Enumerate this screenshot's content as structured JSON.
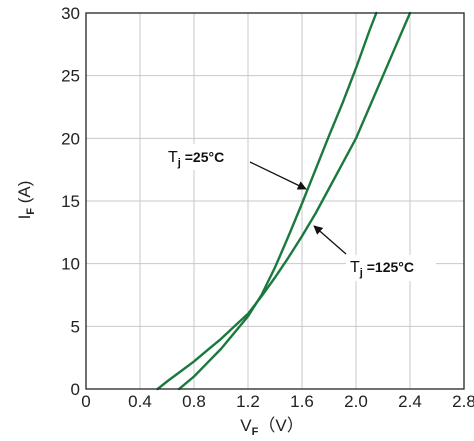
{
  "chart_data": {
    "type": "line",
    "title": "",
    "xlabel": {
      "main": "V",
      "sub": "F",
      "unit": "（V）"
    },
    "ylabel": {
      "main": "I",
      "sub": "F",
      "unit": " (A)"
    },
    "xlim": [
      0,
      2.8
    ],
    "ylim": [
      0,
      30
    ],
    "xticks": [
      "0",
      "0.4",
      "0.8",
      "1.2",
      "1.6",
      "2.0",
      "2.4",
      "2.8"
    ],
    "yticks": [
      "0",
      "5",
      "10",
      "15",
      "20",
      "25",
      "30"
    ],
    "grid": true,
    "line_color": "#1a7a3e",
    "grid_color": "#c8c8c8",
    "series": [
      {
        "x": [
          0.69,
          0.8,
          0.9,
          1.0,
          1.1,
          1.2,
          1.3,
          1.4,
          1.5,
          1.6,
          1.7,
          1.8,
          1.9,
          2.0,
          2.1,
          2.15
        ],
        "y": [
          0.0,
          1.0,
          2.1,
          3.2,
          4.5,
          5.8,
          7.5,
          9.7,
          12.2,
          14.8,
          17.5,
          20.2,
          22.8,
          25.6,
          28.6,
          30.0
        ]
      },
      {
        "x": [
          0.53,
          0.6,
          0.7,
          0.8,
          0.9,
          1.0,
          1.1,
          1.2,
          1.3,
          1.4,
          1.5,
          1.6,
          1.7,
          1.8,
          1.9,
          2.0,
          2.1,
          2.2,
          2.3,
          2.4
        ],
        "y": [
          0.0,
          0.6,
          1.4,
          2.2,
          3.1,
          4.0,
          5.0,
          6.0,
          7.4,
          8.9,
          10.5,
          12.2,
          14.0,
          16.0,
          18.0,
          20.0,
          22.5,
          25.0,
          27.5,
          30.0
        ]
      }
    ],
    "annotations": [
      {
        "main": "T",
        "sub": "j",
        "suffix": " =25°C"
      },
      {
        "main": "T",
        "sub": "j",
        "suffix": " =125°C"
      }
    ]
  }
}
